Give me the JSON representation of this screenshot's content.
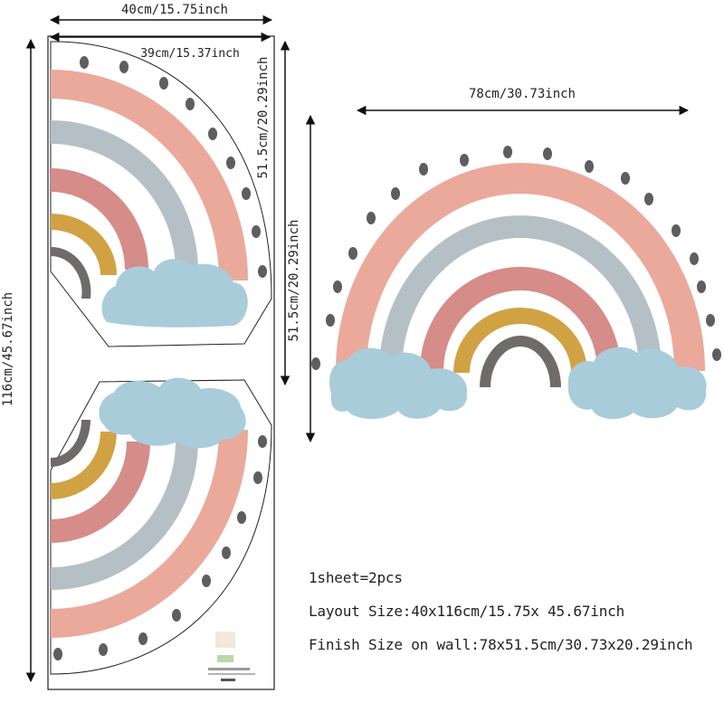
{
  "dimensions": {
    "sheet_width": "40cm/15.75inch",
    "half_width": "39cm/15.37inch",
    "half_height": "51.5cm/20.29inch",
    "sheet_height": "116cm/45.67inch",
    "finish_width": "78cm/30.73inch",
    "finish_height": "51.5cm/20.29inch"
  },
  "info": {
    "sheet_count": "1sheet=2pcs",
    "layout_size": "Layout Size:40x116cm/15.75x 45.67inch",
    "finish_size": "Finish Size on wall:78x51.5cm/30.73x20.29inch"
  },
  "colors": {
    "pink": "#eaa99b",
    "gray_blue": "#b5c0c6",
    "dusty_rose": "#d68c88",
    "mustard": "#d1a244",
    "dark_gray": "#6f6b6b",
    "cloud": "#a9ccdb",
    "dots": "#5e5e60",
    "line": "#111111"
  }
}
